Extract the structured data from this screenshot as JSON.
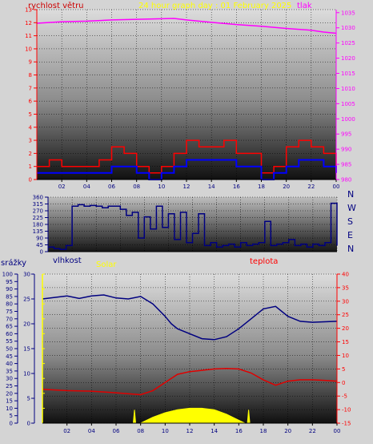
{
  "header": {
    "wind_label": "rychlost větru",
    "title": "24 hour graph day : 01 February 2025",
    "pressure_label": "tlak"
  },
  "colors": {
    "wind_gust": "#ff0000",
    "wind_avg": "#0000ff",
    "pressure": "#ff00ff",
    "direction": "#000080",
    "humidity": "#000080",
    "temperature": "#e00000",
    "solar": "#ffff00",
    "panel_bg": "#d4d4d4",
    "axis_left": "#ff0000",
    "axis_pressure": "#ff00ff",
    "axis_rain": "#000080",
    "axis_humidity": "#000080",
    "axis_solar": "#ffff00",
    "axis_temp": "#ff0000"
  },
  "chart_data": [
    {
      "id": "wind_pressure",
      "type": "line",
      "title": "24 hour graph day : 01 February 2025",
      "x_ticks": [
        "02",
        "04",
        "06",
        "08",
        "10",
        "12",
        "14",
        "16",
        "18",
        "20",
        "22",
        "00"
      ],
      "x_range_hours": [
        0,
        24
      ],
      "left_axis": {
        "label": "rychlost větru",
        "range": [
          0,
          13
        ],
        "ticks": [
          0,
          1,
          2,
          3,
          4,
          5,
          6,
          7,
          8,
          9,
          10,
          11,
          12,
          13
        ]
      },
      "right_axis": {
        "label": "tlak",
        "range": [
          980,
          1036
        ],
        "ticks": [
          980,
          985,
          990,
          995,
          1000,
          1005,
          1010,
          1015,
          1020,
          1025,
          1030,
          1035
        ]
      },
      "series": [
        {
          "name": "tlak",
          "axis": "right",
          "x": [
            0,
            2,
            4,
            6,
            8,
            10,
            11,
            12,
            14,
            16,
            18,
            20,
            22,
            23,
            24
          ],
          "values": [
            1031.5,
            1032,
            1032.2,
            1032.6,
            1032.8,
            1033,
            1033.1,
            1032.6,
            1031.8,
            1031.1,
            1030.5,
            1029.8,
            1029.2,
            1028.6,
            1028.2
          ]
        },
        {
          "name": "gust",
          "axis": "left",
          "x": [
            0,
            1,
            2,
            3,
            4,
            5,
            6,
            7,
            8,
            9,
            10,
            11,
            12,
            13,
            14,
            15,
            16,
            17,
            18,
            19,
            20,
            21,
            22,
            23,
            24
          ],
          "values": [
            1,
            1.5,
            1,
            1,
            1,
            1.5,
            2.5,
            2,
            1,
            0.5,
            1,
            2,
            3,
            2.5,
            2.5,
            3,
            2,
            2,
            0.5,
            1,
            2.5,
            3,
            2.5,
            2,
            1
          ]
        },
        {
          "name": "average",
          "axis": "left",
          "x": [
            0,
            1,
            2,
            3,
            4,
            5,
            6,
            7,
            8,
            9,
            10,
            11,
            12,
            13,
            14,
            15,
            16,
            17,
            18,
            19,
            20,
            21,
            22,
            23,
            24
          ],
          "values": [
            0.5,
            0.5,
            0.5,
            0.5,
            0.5,
            0.5,
            1,
            1,
            0.5,
            0,
            0.5,
            1,
            1.5,
            1.5,
            1.5,
            1.5,
            1,
            1,
            0,
            0.5,
            1,
            1.5,
            1.5,
            1,
            0.5
          ]
        }
      ]
    },
    {
      "id": "wind_direction",
      "type": "line",
      "x_range_hours": [
        0,
        24
      ],
      "left_axis": {
        "range": [
          0,
          360
        ],
        "ticks": [
          0,
          45,
          90,
          135,
          180,
          225,
          270,
          315,
          360
        ]
      },
      "right_labels": [
        "N",
        "W",
        "S",
        "E",
        "N"
      ],
      "series": [
        {
          "name": "direction",
          "x": [
            0,
            0.5,
            1,
            1.5,
            2,
            2.5,
            3,
            3.5,
            4,
            4.5,
            5,
            5.5,
            6,
            6.5,
            7,
            7.5,
            8,
            8.5,
            9,
            9.5,
            10,
            10.5,
            11,
            11.5,
            12,
            12.5,
            13,
            13.5,
            14,
            14.5,
            15,
            15.5,
            16,
            16.5,
            17,
            17.5,
            18,
            18.5,
            19,
            19.5,
            20,
            20.5,
            21,
            21.5,
            22,
            22.5,
            23,
            23.5,
            24
          ],
          "values": [
            30,
            20,
            15,
            40,
            300,
            310,
            300,
            305,
            300,
            290,
            300,
            300,
            280,
            240,
            260,
            90,
            230,
            150,
            300,
            160,
            250,
            80,
            260,
            60,
            120,
            250,
            40,
            60,
            30,
            40,
            50,
            30,
            60,
            40,
            50,
            60,
            200,
            40,
            50,
            60,
            80,
            40,
            50,
            30,
            50,
            40,
            60,
            320,
            40
          ]
        }
      ]
    },
    {
      "id": "humidity_temp_solar",
      "type": "line",
      "x_ticks": [
        "02",
        "04",
        "06",
        "08",
        "10",
        "12",
        "14",
        "16",
        "18",
        "20",
        "22",
        "00"
      ],
      "x_range_hours": [
        0,
        24
      ],
      "axes": {
        "rain": {
          "label": "srážky",
          "range": [
            0,
            100
          ],
          "ticks": [
            0,
            5,
            10,
            15,
            20,
            25,
            30,
            35,
            40,
            45,
            50,
            55,
            60,
            65,
            70,
            75,
            80,
            85,
            90,
            95,
            100
          ]
        },
        "humidity": {
          "label": "vlhkost",
          "range": [
            0,
            30
          ],
          "ticks": [
            0,
            5,
            10,
            15,
            20,
            25,
            30
          ]
        },
        "solar": {
          "label": "Solar",
          "range": [
            0,
            100
          ],
          "ticks": [
            0,
            10,
            20,
            30,
            40,
            50,
            60,
            70,
            80,
            90,
            100
          ]
        },
        "temperature": {
          "label": "teplota",
          "range": [
            -15,
            40
          ],
          "ticks": [
            -15,
            -10,
            -5,
            0,
            5,
            10,
            15,
            20,
            25,
            30,
            35,
            40
          ]
        }
      },
      "series": [
        {
          "name": "vlhkost",
          "axis": "humidity",
          "x": [
            0,
            1,
            2,
            3,
            4,
            5,
            6,
            7,
            8,
            9,
            10,
            10.5,
            11,
            12,
            13,
            14,
            15,
            16,
            17,
            18,
            19,
            20,
            21,
            22,
            23,
            24
          ],
          "values": [
            25,
            25.3,
            25.6,
            25.1,
            25.6,
            25.8,
            25.2,
            25,
            25.5,
            24,
            21.5,
            20,
            19,
            18,
            17,
            16.8,
            17.4,
            19,
            21,
            23,
            23.5,
            21.5,
            20.5,
            20.3,
            20.4,
            20.5
          ]
        },
        {
          "name": "teplota",
          "axis": "temperature",
          "x": [
            0,
            2,
            4,
            6,
            8,
            9,
            10,
            11,
            12,
            13,
            14,
            15,
            16,
            17,
            18,
            19,
            20,
            21,
            22,
            23,
            24
          ],
          "values": [
            -2.5,
            -3,
            -3.2,
            -3.8,
            -4.5,
            -3,
            0,
            3,
            4,
            4.5,
            5,
            5.2,
            5,
            3.5,
            1,
            -1,
            0.5,
            1,
            1,
            0.8,
            0.5
          ]
        },
        {
          "name": "Solar",
          "axis": "solar",
          "type": "area",
          "x": [
            0,
            7.4,
            7.5,
            7.6,
            8,
            9,
            10,
            11,
            12,
            13,
            14,
            15,
            16,
            16.5,
            16.7,
            16.8,
            16.9,
            24
          ],
          "values": [
            0,
            0,
            9,
            0,
            0,
            4,
            7,
            9,
            10,
            10,
            9,
            6,
            2,
            0,
            0,
            9,
            0,
            0
          ]
        }
      ]
    }
  ],
  "labels": {
    "directions": [
      "N",
      "W",
      "S",
      "E",
      "N"
    ],
    "rain_label": "srážky",
    "humidity_label": "vlhkost",
    "solar_label": "Solar",
    "temperature_label": "teplota"
  }
}
